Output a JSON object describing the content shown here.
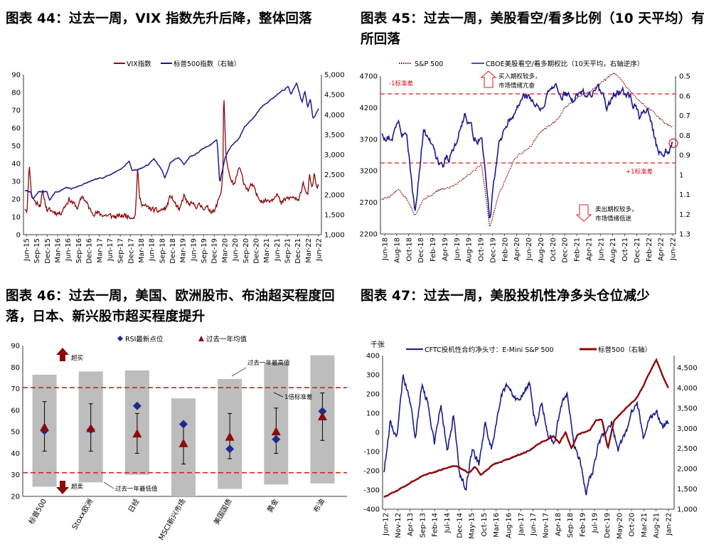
{
  "titles": {
    "p44": "图表 44：过去一周，VIX 指数先升后降，整体回落",
    "p45_l1": "图表 45：过去一周，美股看空/看多比例（10 天平均）有",
    "p45_l2": "所回落",
    "p46_l1": "图表 46：过去一周，美国、欧洲股市、布油超买程度回",
    "p46_l2": "落，日本、新兴股市超买程度提升",
    "p47": "图表 47：过去一周，美股投机性净多头仓位减少"
  },
  "colors": {
    "navy": "#1a1a8c",
    "darkred": "#8b0a0a",
    "red": "#e01b1b",
    "gray": "#bdbdbd",
    "diamond": "#1f2a8f"
  },
  "chart_data": [
    {
      "id": "p44",
      "type": "line",
      "series": [
        {
          "name": "VIX指数",
          "axis": "left",
          "color": "#8b0a0a"
        },
        {
          "name": "标普500指数（右轴）",
          "axis": "right",
          "color": "#1a1a8c"
        }
      ],
      "x_ticks": [
        "Jun-15",
        "Sep-15",
        "Dec-15",
        "Mar-16",
        "Jun-16",
        "Sep-16",
        "Dec-16",
        "Mar-17",
        "Jun-17",
        "Sep-17",
        "Dec-17",
        "Mar-18",
        "Jun-18",
        "Sep-18",
        "Dec-18",
        "Mar-19",
        "Jun-19",
        "Sep-19",
        "Dec-19",
        "Mar-20",
        "Jun-20",
        "Sep-20",
        "Dec-20",
        "Mar-21",
        "Jun-21",
        "Sep-21",
        "Dec-21",
        "Mar-22",
        "Jun-22"
      ],
      "y_left_ticks": [
        "0",
        "10",
        "20",
        "30",
        "40",
        "50",
        "60",
        "70",
        "80",
        "90"
      ],
      "y_right_ticks": [
        "1,000",
        "1,500",
        "2,000",
        "2,500",
        "3,000",
        "3,500",
        "4,000",
        "4,500",
        "5,000"
      ],
      "ylim_left": [
        0,
        90
      ],
      "ylim_right": [
        1000,
        5000
      ],
      "anchors_vix": [
        [
          0,
          15
        ],
        [
          1,
          14
        ],
        [
          2,
          40
        ],
        [
          3,
          22
        ],
        [
          5,
          18
        ],
        [
          7,
          17
        ],
        [
          8,
          24
        ],
        [
          10,
          14
        ],
        [
          13,
          13
        ],
        [
          16,
          12
        ],
        [
          20,
          20
        ],
        [
          24,
          15
        ],
        [
          26,
          22
        ],
        [
          30,
          13
        ],
        [
          36,
          11
        ],
        [
          42,
          10
        ],
        [
          45,
          11
        ],
        [
          48,
          10
        ],
        [
          50,
          11
        ],
        [
          51,
          37
        ],
        [
          52,
          20
        ],
        [
          54,
          16
        ],
        [
          56,
          15
        ],
        [
          60,
          13
        ],
        [
          64,
          15
        ],
        [
          66,
          22
        ],
        [
          70,
          13
        ],
        [
          72,
          22
        ],
        [
          74,
          17
        ],
        [
          80,
          16
        ],
        [
          84,
          14
        ],
        [
          86,
          13
        ],
        [
          89,
          25
        ],
        [
          89.8,
          38
        ],
        [
          90,
          83
        ],
        [
          91,
          45
        ],
        [
          93,
          30
        ],
        [
          95,
          28
        ],
        [
          97,
          38
        ],
        [
          99,
          30
        ],
        [
          101,
          25
        ],
        [
          103,
          28
        ],
        [
          105,
          22
        ],
        [
          108,
          19
        ],
        [
          112,
          20
        ],
        [
          114,
          24
        ],
        [
          116,
          17
        ],
        [
          118,
          20
        ],
        [
          122,
          21
        ],
        [
          124,
          18
        ],
        [
          126,
          30
        ],
        [
          128,
          22
        ],
        [
          129,
          33
        ],
        [
          130,
          25
        ],
        [
          131,
          35
        ],
        [
          132,
          26
        ],
        [
          133,
          28
        ]
      ],
      "anchors_spx": [
        [
          0,
          2100
        ],
        [
          2,
          2075
        ],
        [
          3,
          1880
        ],
        [
          5,
          2075
        ],
        [
          8,
          2080
        ],
        [
          9,
          1860
        ],
        [
          11,
          2060
        ],
        [
          13,
          2100
        ],
        [
          15,
          2170
        ],
        [
          17,
          2150
        ],
        [
          19,
          2200
        ],
        [
          22,
          2280
        ],
        [
          25,
          2360
        ],
        [
          28,
          2420
        ],
        [
          31,
          2500
        ],
        [
          33,
          2570
        ],
        [
          36,
          2690
        ],
        [
          38,
          2850
        ],
        [
          39,
          2600
        ],
        [
          42,
          2650
        ],
        [
          45,
          2750
        ],
        [
          47,
          2900
        ],
        [
          50,
          2600
        ],
        [
          51,
          2400
        ],
        [
          53,
          2800
        ],
        [
          56,
          2940
        ],
        [
          58,
          2750
        ],
        [
          60,
          2950
        ],
        [
          62,
          3000
        ],
        [
          65,
          3150
        ],
        [
          68,
          3270
        ],
        [
          70,
          3380
        ],
        [
          71,
          2300
        ],
        [
          73,
          2950
        ],
        [
          75,
          3200
        ],
        [
          78,
          3400
        ],
        [
          80,
          3700
        ],
        [
          83,
          3900
        ],
        [
          86,
          4180
        ],
        [
          88,
          4300
        ],
        [
          90,
          4400
        ],
        [
          93,
          4550
        ],
        [
          96,
          4700
        ],
        [
          97,
          4500
        ],
        [
          99,
          4790
        ],
        [
          101,
          4300
        ],
        [
          102,
          4600
        ],
        [
          103,
          4200
        ],
        [
          104,
          4400
        ],
        [
          105,
          3900
        ],
        [
          106,
          4000
        ],
        [
          107,
          4150
        ]
      ]
    },
    {
      "id": "p45",
      "type": "line",
      "series": [
        {
          "name": "S&P 500",
          "axis": "left",
          "style": "dotted",
          "color": "#8b0a0a"
        },
        {
          "name": "CBOE美股看空/看多期权比（10天平均，右轴逆序）",
          "axis": "right-inverted",
          "color": "#1a1a8c"
        }
      ],
      "x_ticks": [
        "Jun-18",
        "Aug-18",
        "Oct-18",
        "Dec-18",
        "Feb-19",
        "Apr-19",
        "Jun-19",
        "Aug-19",
        "Oct-19",
        "Dec-19",
        "Feb-20",
        "Apr-20",
        "Jun-20",
        "Aug-20",
        "Oct-20",
        "Dec-20",
        "Feb-21",
        "Apr-21",
        "Jun-21",
        "Aug-21",
        "Oct-21",
        "Dec-21",
        "Feb-22",
        "Apr-22",
        "Jun-22"
      ],
      "y_left_ticks": [
        "2200",
        "2700",
        "3200",
        "3700",
        "4200",
        "4700"
      ],
      "y_right_ticks": [
        "0.5",
        "0.6",
        "0.7",
        "0.8",
        "0.9",
        "1",
        "1.1",
        "1.2",
        "1.3"
      ],
      "ylim_left": [
        2200,
        4700
      ],
      "ylim_right": [
        1.3,
        0.5
      ],
      "threshold_minus1sd": 0.59,
      "threshold_plus1sd": 0.94,
      "anchors_spx": [
        [
          0,
          2750
        ],
        [
          1,
          2800
        ],
        [
          2,
          2900
        ],
        [
          3,
          2750
        ],
        [
          4,
          2500
        ],
        [
          5,
          2750
        ],
        [
          6,
          2820
        ],
        [
          7,
          2900
        ],
        [
          8,
          2930
        ],
        [
          9,
          3000
        ],
        [
          10,
          3100
        ],
        [
          11,
          3200
        ],
        [
          12,
          3300
        ],
        [
          13,
          2300
        ],
        [
          14,
          2800
        ],
        [
          15,
          3100
        ],
        [
          16,
          3400
        ],
        [
          17,
          3500
        ],
        [
          18,
          3600
        ],
        [
          19,
          3800
        ],
        [
          20,
          3900
        ],
        [
          21,
          4000
        ],
        [
          22,
          4200
        ],
        [
          23,
          4300
        ],
        [
          24,
          4400
        ],
        [
          25,
          4450
        ],
        [
          26,
          4550
        ],
        [
          27,
          4650
        ],
        [
          28,
          4750
        ],
        [
          29,
          4600
        ],
        [
          30,
          4450
        ],
        [
          31,
          4300
        ],
        [
          32,
          4200
        ],
        [
          33,
          4100
        ],
        [
          34,
          3950
        ],
        [
          35,
          3900
        ]
      ],
      "anchors_pc": [
        [
          0,
          0.8
        ],
        [
          1,
          0.82
        ],
        [
          2,
          0.74
        ],
        [
          3,
          0.82
        ],
        [
          4,
          1.2
        ],
        [
          5,
          0.78
        ],
        [
          6,
          0.85
        ],
        [
          7,
          0.95
        ],
        [
          8,
          0.92
        ],
        [
          9,
          0.82
        ],
        [
          10,
          0.7
        ],
        [
          11,
          0.8
        ],
        [
          12,
          0.82
        ],
        [
          13,
          1.22
        ],
        [
          14,
          0.85
        ],
        [
          15,
          0.72
        ],
        [
          16,
          0.68
        ],
        [
          17,
          0.6
        ],
        [
          18,
          0.62
        ],
        [
          19,
          0.66
        ],
        [
          20,
          0.6
        ],
        [
          21,
          0.57
        ],
        [
          22,
          0.58
        ],
        [
          23,
          0.62
        ],
        [
          24,
          0.58
        ],
        [
          25,
          0.6
        ],
        [
          26,
          0.56
        ],
        [
          27,
          0.66
        ],
        [
          28,
          0.6
        ],
        [
          29,
          0.58
        ],
        [
          30,
          0.62
        ],
        [
          31,
          0.7
        ],
        [
          32,
          0.66
        ],
        [
          33,
          0.85
        ],
        [
          34,
          0.92
        ],
        [
          35,
          0.84
        ]
      ],
      "annotations": {
        "buy": "买入期权较多，",
        "buy2": "市场情绪亢奋",
        "sell": "卖出期权较多，",
        "sell2": "市场情绪低迷",
        "minus1": "-1标准差",
        "plus1": "+1标准差"
      }
    },
    {
      "id": "p46",
      "type": "bar",
      "legend": [
        "RSI最新点位",
        "过去一年均值"
      ],
      "categories": [
        "标普500",
        "Stoxx欧洲",
        "日经",
        "MSCI新兴市场",
        "美国国债",
        "黄金",
        "布油"
      ],
      "range_high": [
        76.5,
        78,
        78.5,
        65.5,
        74.5,
        82,
        85.5
      ],
      "range_low": [
        24.5,
        26.5,
        30,
        20,
        23.5,
        25.5,
        26
      ],
      "rsi_latest": [
        50.5,
        51,
        62,
        53.5,
        42,
        46.5,
        59.5
      ],
      "year_mean": [
        52,
        51.5,
        49,
        44.5,
        47.5,
        50,
        57
      ],
      "std_high": [
        64,
        63,
        58.5,
        54,
        58.5,
        61,
        68
      ],
      "std_low": [
        41,
        41,
        40,
        35,
        37.5,
        40,
        46
      ],
      "overbought_line": 70.5,
      "oversold_line": 31,
      "y_ticks": [
        "20",
        "30",
        "40",
        "50",
        "60",
        "70",
        "80",
        "90"
      ],
      "ylim": [
        20,
        90
      ],
      "annotations": {
        "overbought": "超买",
        "oversold": "超卖",
        "year_high": "过去一年最高值",
        "year_low": "过去一年最低值",
        "one_sd": "1倍标准差"
      }
    },
    {
      "id": "p47",
      "type": "line",
      "unit_left": "千张",
      "series": [
        {
          "name": "CFTC投机性合约净头寸：E-Mini S&P 500",
          "axis": "left",
          "color": "#1a1a8c"
        },
        {
          "name": "标普500（右轴）",
          "axis": "right",
          "color": "#8b0a0a"
        }
      ],
      "x_ticks": [
        "Jun-12",
        "Nov-12",
        "Apr-13",
        "Sep-13",
        "Feb-14",
        "Jul-14",
        "Dec-14",
        "May-15",
        "Oct-15",
        "Mar-16",
        "Aug-16",
        "Jan-17",
        "Jun-17",
        "Nov-17",
        "Apr-18",
        "Sep-18",
        "Feb-19",
        "Jul-19",
        "Dec-19",
        "May-20",
        "Oct-20",
        "Mar-21",
        "Aug-21",
        "Jan-22"
      ],
      "y_left_ticks": [
        "-400",
        "-300",
        "-200",
        "-100",
        "0",
        "100",
        "200",
        "300",
        "400"
      ],
      "y_right_ticks": [
        "1,000",
        "1,500",
        "2,000",
        "2,500",
        "3,000",
        "3,500",
        "4,000",
        "4,500"
      ],
      "ylim_left": [
        -400,
        400
      ],
      "ylim_right": [
        1000,
        4800
      ],
      "anchors_cftc": [
        [
          0,
          -200
        ],
        [
          1,
          60
        ],
        [
          2,
          -30
        ],
        [
          3,
          290
        ],
        [
          4,
          180
        ],
        [
          5,
          -30
        ],
        [
          6,
          250
        ],
        [
          7,
          140
        ],
        [
          8,
          -50
        ],
        [
          9,
          150
        ],
        [
          10,
          -100
        ],
        [
          11,
          90
        ],
        [
          12,
          -220
        ],
        [
          13,
          -280
        ],
        [
          14,
          -80
        ],
        [
          15,
          -170
        ],
        [
          16,
          60
        ],
        [
          17,
          -90
        ],
        [
          18,
          100
        ],
        [
          19,
          240
        ],
        [
          20,
          220
        ],
        [
          21,
          160
        ],
        [
          22,
          200
        ],
        [
          23,
          260
        ],
        [
          24,
          30
        ],
        [
          25,
          150
        ],
        [
          26,
          -20
        ],
        [
          27,
          -50
        ],
        [
          28,
          150
        ],
        [
          29,
          200
        ],
        [
          30,
          -50
        ],
        [
          31,
          -150
        ],
        [
          32,
          -310
        ],
        [
          33,
          -200
        ],
        [
          34,
          -50
        ],
        [
          35,
          -10
        ],
        [
          36,
          60
        ],
        [
          37,
          -100
        ],
        [
          38,
          -20
        ],
        [
          39,
          80
        ],
        [
          40,
          170
        ],
        [
          41,
          -30
        ],
        [
          42,
          60
        ],
        [
          43,
          120
        ],
        [
          44,
          40
        ],
        [
          45,
          40
        ]
      ],
      "anchors_spx": [
        [
          0,
          1300
        ],
        [
          2,
          1450
        ],
        [
          4,
          1620
        ],
        [
          6,
          1800
        ],
        [
          8,
          1900
        ],
        [
          10,
          2000
        ],
        [
          12,
          2080
        ],
        [
          14,
          1900
        ],
        [
          15,
          2050
        ],
        [
          16,
          1850
        ],
        [
          18,
          2100
        ],
        [
          20,
          2200
        ],
        [
          22,
          2320
        ],
        [
          24,
          2450
        ],
        [
          26,
          2650
        ],
        [
          28,
          2800
        ],
        [
          29,
          2640
        ],
        [
          30,
          2900
        ],
        [
          31,
          2500
        ],
        [
          32,
          2850
        ],
        [
          34,
          2950
        ],
        [
          35,
          3200
        ],
        [
          36,
          3230
        ],
        [
          37,
          2500
        ],
        [
          38,
          3200
        ],
        [
          40,
          3500
        ],
        [
          42,
          3800
        ],
        [
          44,
          4400
        ],
        [
          45,
          4700
        ],
        [
          46,
          4300
        ],
        [
          47,
          4000
        ]
      ]
    }
  ]
}
